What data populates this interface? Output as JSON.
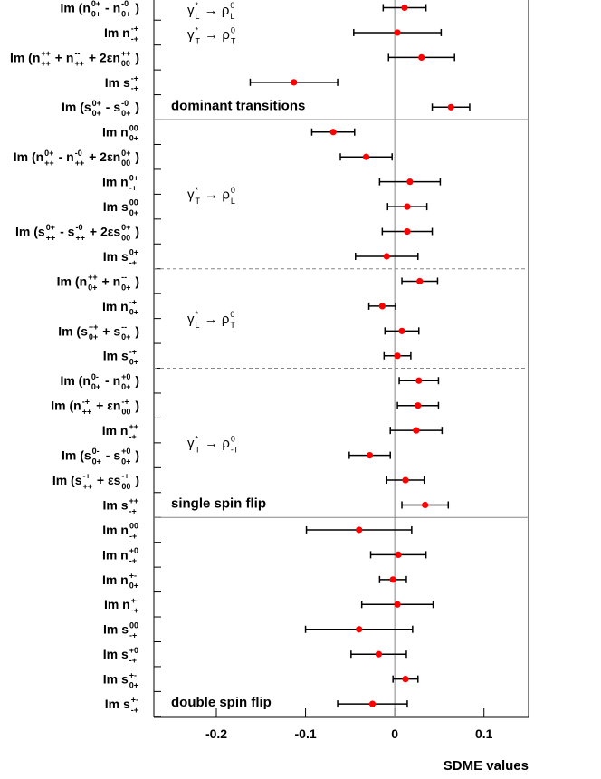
{
  "chart_data": {
    "type": "errorbar",
    "xlabel": "SDME values",
    "xlim": [
      -0.27,
      0.15
    ],
    "xticks": [
      -0.2,
      -0.1,
      0,
      0.1
    ],
    "point_color": "#ff0000",
    "groups": [
      {
        "annotation": "dominant transitions",
        "border": "solid",
        "labels": [
          [
            {
              "base": "γ",
              "sup": "*",
              "sub": "L"
            },
            " → ",
            {
              "base": "ρ",
              "sup": "0",
              "sub": "L"
            }
          ],
          [
            {
              "base": "γ",
              "sup": "*",
              "sub": "T"
            },
            " → ",
            {
              "base": "ρ",
              "sup": "0",
              "sub": "T"
            }
          ]
        ],
        "categories": [
          [
            "Im (",
            {
              "base": "n",
              "sup": "0+",
              "sub": "0+"
            },
            " - ",
            {
              "base": "n",
              "sup": "-0",
              "sub": "0+"
            },
            " )"
          ],
          [
            "Im ",
            {
              "base": "n",
              "sup": "-+",
              "sub": "-+"
            }
          ],
          [
            "Im (",
            {
              "base": "n",
              "sup": "++",
              "sub": "++"
            },
            " + ",
            {
              "base": "n",
              "sup": "--",
              "sub": "++"
            },
            " + 2ε",
            {
              "base": "n",
              "sup": "++",
              "sub": "00"
            },
            " )"
          ],
          [
            "Im ",
            {
              "base": "s",
              "sup": "-+",
              "sub": "-+"
            }
          ],
          [
            "Im (",
            {
              "base": "s",
              "sup": "0+",
              "sub": "0+"
            },
            " - ",
            {
              "base": "s",
              "sup": "-0",
              "sub": "0+"
            },
            " )"
          ]
        ],
        "values": [
          0.011,
          0.003,
          0.03,
          -0.113,
          0.063
        ],
        "errors": [
          0.024,
          0.049,
          0.037,
          0.049,
          0.021
        ]
      },
      {
        "border": "dashed",
        "labels": [
          [
            {
              "base": "γ",
              "sup": "*",
              "sub": "T"
            },
            " → ",
            {
              "base": "ρ",
              "sup": "0",
              "sub": "L"
            }
          ]
        ],
        "categories": [
          [
            "Im ",
            {
              "base": "n",
              "sup": "00",
              "sub": "0+"
            }
          ],
          [
            "Im (",
            {
              "base": "n",
              "sup": "0+",
              "sub": "++"
            },
            " - ",
            {
              "base": "n",
              "sup": "-0",
              "sub": "++"
            },
            " + 2ε",
            {
              "base": "n",
              "sup": "0+",
              "sub": "00"
            },
            " )"
          ],
          [
            "Im ",
            {
              "base": "n",
              "sup": "0+",
              "sub": "-+"
            }
          ],
          [
            "Im ",
            {
              "base": "s",
              "sup": "00",
              "sub": "0+"
            }
          ],
          [
            "Im (",
            {
              "base": "s",
              "sup": "0+",
              "sub": "++"
            },
            " - ",
            {
              "base": "s",
              "sup": "-0",
              "sub": "++"
            },
            " + 2ε",
            {
              "base": "s",
              "sup": "0+",
              "sub": "00"
            },
            " )"
          ],
          [
            "Im ",
            {
              "base": "s",
              "sup": "0+",
              "sub": "-+"
            }
          ]
        ],
        "values": [
          -0.069,
          -0.032,
          0.017,
          0.014,
          0.014,
          -0.009
        ],
        "errors": [
          0.024,
          0.029,
          0.034,
          0.022,
          0.028,
          0.035
        ]
      },
      {
        "border": "dashed",
        "labels": [
          [
            {
              "base": "γ",
              "sup": "*",
              "sub": "L"
            },
            " → ",
            {
              "base": "ρ",
              "sup": "0",
              "sub": "T"
            }
          ]
        ],
        "categories": [
          [
            "Im (",
            {
              "base": "n",
              "sup": "++",
              "sub": "0+"
            },
            " + ",
            {
              "base": "n",
              "sup": "--",
              "sub": "0+"
            },
            " )"
          ],
          [
            "Im ",
            {
              "base": "n",
              "sup": "-+",
              "sub": "0+"
            }
          ],
          [
            "Im (",
            {
              "base": "s",
              "sup": "++",
              "sub": "0+"
            },
            " + ",
            {
              "base": "s",
              "sup": "--",
              "sub": "0+"
            },
            " )"
          ],
          [
            "Im ",
            {
              "base": "s",
              "sup": "-+",
              "sub": "0+"
            }
          ]
        ],
        "values": [
          0.028,
          -0.014,
          0.008,
          0.003
        ],
        "errors": [
          0.02,
          0.015,
          0.019,
          0.015
        ]
      },
      {
        "annotation": "single spin flip",
        "border": "solid",
        "labels": [
          [
            {
              "base": "γ",
              "sup": "*",
              "sub": "T"
            },
            " → ",
            {
              "base": "ρ",
              "sup": "0",
              "sub": "-T"
            }
          ]
        ],
        "categories": [
          [
            "Im (",
            {
              "base": "n",
              "sup": "0-",
              "sub": "0+"
            },
            " - ",
            {
              "base": "n",
              "sup": "+0",
              "sub": "0+"
            },
            " )"
          ],
          [
            "Im (",
            {
              "base": "n",
              "sup": "-+",
              "sub": "++"
            },
            " + ε",
            {
              "base": "n",
              "sup": "-+",
              "sub": "00"
            },
            " )"
          ],
          [
            "Im ",
            {
              "base": "n",
              "sup": "++",
              "sub": "-+"
            }
          ],
          [
            "Im (",
            {
              "base": "s",
              "sup": "0-",
              "sub": "0+"
            },
            " - ",
            {
              "base": "s",
              "sup": "+0",
              "sub": "0+"
            },
            " )"
          ],
          [
            "Im (",
            {
              "base": "s",
              "sup": "-+",
              "sub": "++"
            },
            " + ε",
            {
              "base": "s",
              "sup": "-+",
              "sub": "00"
            },
            " )"
          ],
          [
            "Im ",
            {
              "base": "s",
              "sup": "++",
              "sub": "-+"
            }
          ]
        ],
        "values": [
          0.027,
          0.026,
          0.024,
          -0.028,
          0.012,
          0.034
        ],
        "errors": [
          0.022,
          0.023,
          0.029,
          0.023,
          0.021,
          0.026
        ]
      },
      {
        "annotation": "double spin flip",
        "categories": [
          [
            "Im ",
            {
              "base": "n",
              "sup": "00",
              "sub": "-+"
            }
          ],
          [
            "Im ",
            {
              "base": "n",
              "sup": "+0",
              "sub": "-+"
            }
          ],
          [
            "Im ",
            {
              "base": "n",
              "sup": "+-",
              "sub": "0+"
            }
          ],
          [
            "Im ",
            {
              "base": "n",
              "sup": "+-",
              "sub": "-+"
            }
          ],
          [
            "Im ",
            {
              "base": "s",
              "sup": "00",
              "sub": "-+"
            }
          ],
          [
            "Im ",
            {
              "base": "s",
              "sup": "+0",
              "sub": "-+"
            }
          ],
          [
            "Im ",
            {
              "base": "s",
              "sup": "+-",
              "sub": "0+"
            }
          ],
          [
            "Im ",
            {
              "base": "s",
              "sup": "+-",
              "sub": "-+"
            }
          ]
        ],
        "values": [
          -0.04,
          0.004,
          -0.002,
          0.003,
          -0.04,
          -0.018,
          0.012,
          -0.025
        ],
        "errors": [
          0.059,
          0.031,
          0.015,
          0.04,
          0.06,
          0.031,
          0.014,
          0.039
        ]
      }
    ]
  }
}
